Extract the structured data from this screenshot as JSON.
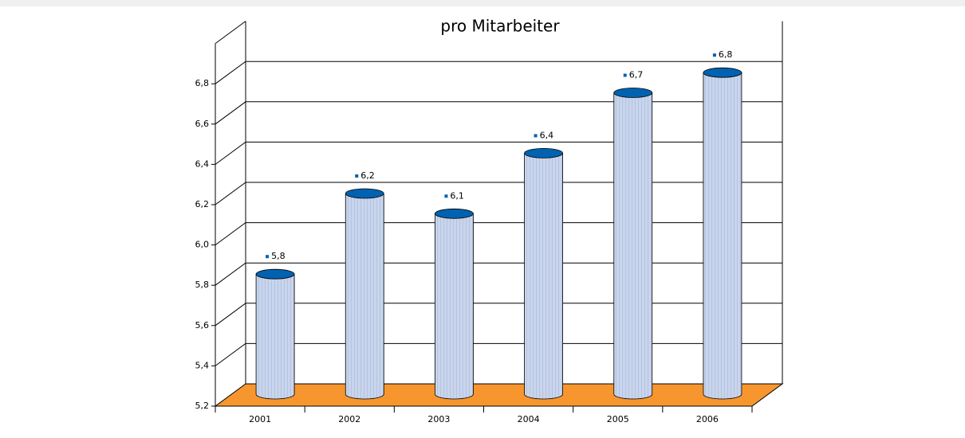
{
  "chart_data": {
    "type": "bar3d",
    "title": "pro Mitarbeiter",
    "categories": [
      "2001",
      "2002",
      "2003",
      "2004",
      "2005",
      "2006"
    ],
    "values": [
      5.8,
      6.2,
      6.1,
      6.4,
      6.7,
      6.8
    ],
    "value_labels": [
      "5,8",
      "6,2",
      "6,1",
      "6,4",
      "6,7",
      "6,8"
    ],
    "color": "#c9d5ec",
    "top_color": "#0062b0",
    "floor_color": "#f7962e",
    "ylim": [
      5.2,
      7.0
    ],
    "yticks": [
      {
        "value": 5.2,
        "label": "5,2"
      },
      {
        "value": 5.4,
        "label": "5,4"
      },
      {
        "value": 5.6,
        "label": "5,6"
      },
      {
        "value": 5.8,
        "label": "5,8"
      },
      {
        "value": 6.0,
        "label": "6,0"
      },
      {
        "value": 6.2,
        "label": "6,2"
      },
      {
        "value": 6.4,
        "label": "6,4"
      },
      {
        "value": 6.6,
        "label": "6,6"
      },
      {
        "value": 6.8,
        "label": "6,8"
      }
    ],
    "grid": true
  }
}
